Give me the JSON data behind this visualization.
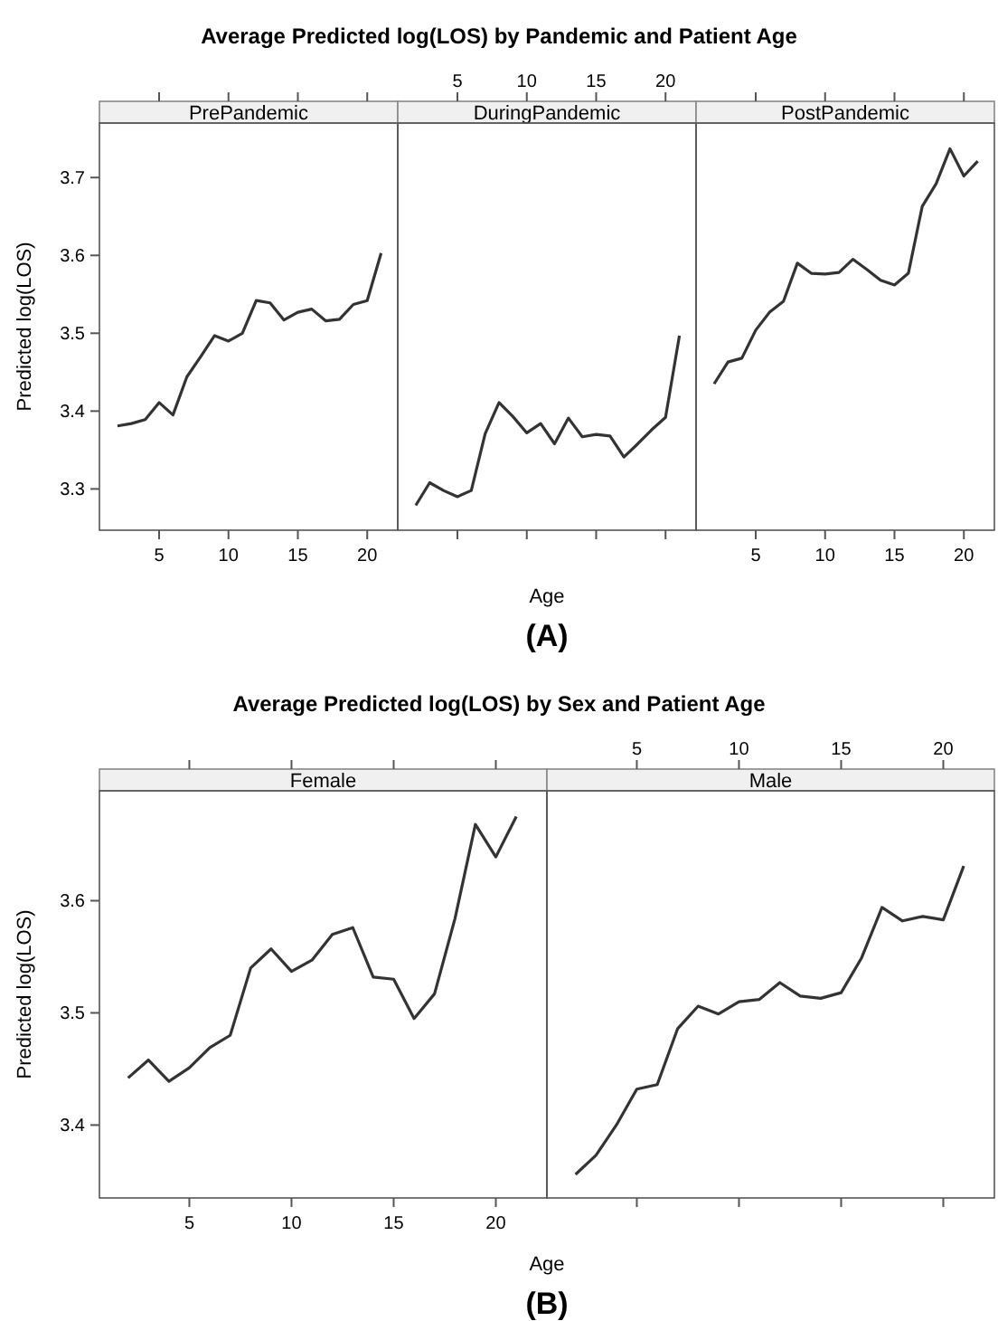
{
  "chart_data": [
    {
      "type": "line",
      "title": "Average Predicted log(LOS) by Pandemic and Patient Age",
      "subtitle": "PrePandemic",
      "ylabel": "Predicted log(LOS)",
      "color": "#333333",
      "xlim": [
        0.7,
        22.2
      ],
      "xticks": [
        5,
        10,
        15,
        20
      ],
      "ylim": [
        3.247,
        3.77
      ],
      "yticks": [
        3.3,
        3.4,
        3.5,
        3.6,
        3.7
      ],
      "x": [
        2,
        3,
        4,
        5,
        6,
        7,
        8,
        9,
        10,
        11,
        12,
        13,
        14,
        15,
        16,
        17,
        18,
        19,
        20,
        21
      ],
      "values": [
        3.381,
        3.384,
        3.389,
        3.411,
        3.395,
        3.444,
        3.47,
        3.497,
        3.49,
        3.5,
        3.542,
        3.539,
        3.517,
        3.527,
        3.531,
        3.516,
        3.518,
        3.537,
        3.542,
        3.603
      ]
    },
    {
      "type": "line",
      "subtitle": "DuringPandemic",
      "xlabel": "Age",
      "annotations": [
        "(A)"
      ],
      "color": "#333333",
      "tick_labels": false,
      "xlim": [
        0.7,
        22.2
      ],
      "xticks": [
        5,
        10,
        15,
        20
      ],
      "x2lim": [
        0.7,
        22.2
      ],
      "x2ticks": [
        5,
        10,
        15,
        20
      ],
      "ylim": [
        3.247,
        3.77
      ],
      "x": [
        2,
        3,
        4,
        5,
        6,
        7,
        8,
        9,
        10,
        11,
        12,
        13,
        14,
        15,
        16,
        17,
        18,
        19,
        20,
        21
      ],
      "values": [
        3.279,
        3.308,
        3.298,
        3.29,
        3.298,
        3.371,
        3.411,
        3.393,
        3.372,
        3.384,
        3.358,
        3.391,
        3.367,
        3.37,
        3.368,
        3.341,
        3.358,
        3.376,
        3.392,
        3.497
      ]
    },
    {
      "type": "line",
      "subtitle": "PostPandemic",
      "color": "#333333",
      "tick_labels": "x",
      "xlim": [
        0.7,
        22.2
      ],
      "xticks": [
        5,
        10,
        15,
        20
      ],
      "ylim": [
        3.247,
        3.77
      ],
      "x": [
        2,
        3,
        4,
        5,
        6,
        7,
        8,
        9,
        10,
        11,
        12,
        13,
        14,
        15,
        16,
        17,
        18,
        19,
        20,
        21
      ],
      "values": [
        3.435,
        3.463,
        3.468,
        3.504,
        3.527,
        3.541,
        3.59,
        3.577,
        3.576,
        3.578,
        3.595,
        3.582,
        3.568,
        3.562,
        3.577,
        3.663,
        3.692,
        3.737,
        3.702,
        3.721
      ]
    },
    {
      "type": "line",
      "title": "Average Predicted log(LOS) by Sex and Patient Age",
      "subtitle": "Female",
      "ylabel": "Predicted log(LOS)",
      "xlabel": "Age",
      "annotations": [
        "(B)"
      ],
      "color": "#333333",
      "xlim": [
        0.6,
        22.5
      ],
      "xticks": [
        5,
        10,
        15,
        20
      ],
      "ylim": [
        3.335,
        3.698
      ],
      "yticks": [
        3.4,
        3.5,
        3.6
      ],
      "x": [
        2,
        3,
        4,
        5,
        6,
        7,
        8,
        9,
        10,
        11,
        12,
        13,
        14,
        15,
        16,
        17,
        18,
        19,
        20,
        21
      ],
      "values": [
        3.442,
        3.458,
        3.439,
        3.451,
        3.469,
        3.48,
        3.54,
        3.557,
        3.537,
        3.547,
        3.57,
        3.576,
        3.532,
        3.53,
        3.495,
        3.517,
        3.584,
        3.668,
        3.639,
        3.675
      ]
    },
    {
      "type": "line",
      "subtitle": "Male",
      "color": "#333333",
      "tick_labels": false,
      "xlim": [
        0.6,
        22.5
      ],
      "xticks": [
        5,
        10,
        15,
        20
      ],
      "x2lim": [
        0.6,
        22.5
      ],
      "x2ticks": [
        5,
        10,
        15,
        20
      ],
      "ylim": [
        3.335,
        3.698
      ],
      "x": [
        2,
        3,
        4,
        5,
        6,
        7,
        8,
        9,
        10,
        11,
        12,
        13,
        14,
        15,
        16,
        17,
        18,
        19,
        20,
        21
      ],
      "values": [
        3.356,
        3.373,
        3.4,
        3.432,
        3.436,
        3.486,
        3.506,
        3.499,
        3.51,
        3.512,
        3.527,
        3.515,
        3.513,
        3.518,
        3.549,
        3.594,
        3.582,
        3.586,
        3.583,
        3.631
      ]
    }
  ]
}
